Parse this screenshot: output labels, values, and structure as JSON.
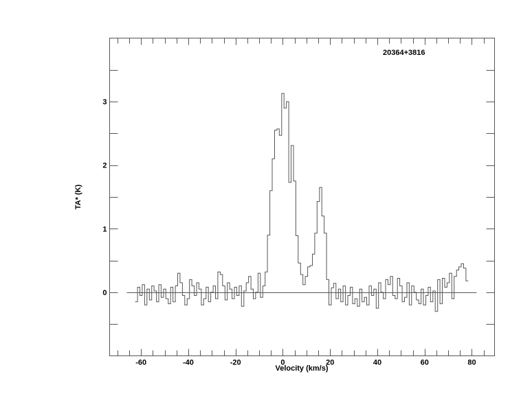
{
  "chart_data": {
    "type": "line",
    "style": "step",
    "title": "20364+3816",
    "xlabel": "Velocity (km/s)",
    "ylabel": "TA* (K)",
    "xlim": [
      -73.3,
      89.6
    ],
    "ylim": [
      -1,
      4
    ],
    "xticks": [
      -60,
      -40,
      -20,
      0,
      20,
      40,
      60,
      80
    ],
    "yticks": [
      0,
      1,
      2,
      3
    ],
    "grid": false,
    "baseline": 0,
    "line_color": "#555555",
    "x_start": -62,
    "x_step": 1,
    "values": [
      -0.15,
      0.08,
      -0.05,
      0.12,
      -0.2,
      0.05,
      -0.12,
      0.1,
      0.02,
      -0.15,
      0.12,
      -0.08,
      0.05,
      -0.1,
      -0.18,
      0.08,
      -0.15,
      0.1,
      0.3,
      0.15,
      -0.05,
      -0.2,
      -0.1,
      0.2,
      0.1,
      -0.05,
      0.15,
      0.05,
      -0.2,
      -0.1,
      0.08,
      -0.15,
      0.0,
      0.1,
      -0.1,
      0.32,
      0.28,
      0.1,
      -0.12,
      0.15,
      0.05,
      -0.1,
      0.08,
      -0.05,
      0.1,
      -0.22,
      0.02,
      0.15,
      0.25,
      0.05,
      -0.1,
      0.0,
      0.3,
      -0.08,
      0.1,
      0.32,
      0.9,
      1.6,
      2.1,
      2.55,
      2.57,
      2.47,
      3.13,
      2.9,
      3.0,
      1.73,
      2.31,
      1.75,
      0.89,
      0.46,
      0.28,
      0.12,
      0.25,
      0.4,
      0.42,
      0.6,
      0.93,
      1.43,
      1.65,
      1.2,
      0.93,
      0.2,
      -0.2,
      0.07,
      0.14,
      -0.1,
      0.05,
      -0.15,
      0.1,
      -0.2,
      -0.05,
      0.08,
      -0.18,
      -0.1,
      -0.22,
      0.05,
      -0.15,
      -0.08,
      -0.2,
      0.1,
      -0.05,
      0.05,
      -0.25,
      0.15,
      0.0,
      -0.1,
      0.2,
      0.12,
      0.25,
      -0.05,
      -0.1,
      0.22,
      0.1,
      -0.15,
      -0.08,
      0.15,
      -0.2,
      0.1,
      0.0,
      -0.12,
      -0.18,
      0.05,
      -0.2,
      -0.05,
      0.08,
      -0.15,
      0.02,
      -0.3,
      0.2,
      -0.18,
      0.22,
      0.08,
      0.15,
      0.3,
      -0.1,
      0.25,
      0.35,
      0.4,
      0.45,
      0.38,
      0.18
    ]
  }
}
